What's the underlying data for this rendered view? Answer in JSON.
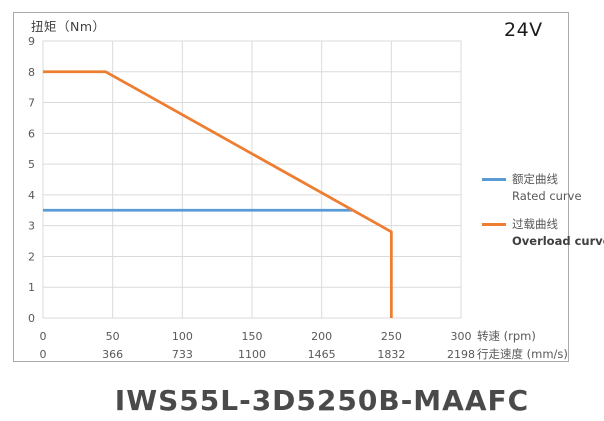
{
  "page": {
    "voltage_badge": "24V",
    "model_title": "IWS55L-3D5250B-MAAFC"
  },
  "chart_data": {
    "type": "line",
    "title": "IWS55L-3D5250B-MAAFC",
    "annotations": [
      "24V"
    ],
    "grid": true,
    "legend_position": "right",
    "y_axis": {
      "label": "扭矩（Nm）",
      "min": 0,
      "max": 9,
      "ticks": [
        0,
        1,
        2,
        3,
        4,
        5,
        6,
        7,
        8,
        9
      ]
    },
    "x_axis": {
      "label": "转速 (rpm)",
      "min": 0,
      "max": 300,
      "ticks": [
        0,
        50,
        100,
        150,
        200,
        250,
        300
      ]
    },
    "x_axis_secondary": {
      "label": "行走速度 (mm/s)",
      "tick_labels": [
        "0",
        "366",
        "733",
        "1100",
        "1465",
        "1832",
        "2198"
      ]
    },
    "series": [
      {
        "name_zh": "额定曲线",
        "name_en": "Rated curve",
        "color": "#5B9BD5",
        "points": [
          [
            0,
            3.5
          ],
          [
            222,
            3.5
          ]
        ]
      },
      {
        "name_zh": "过载曲线",
        "name_en": "Overload curve",
        "color": "#ED7D31",
        "points": [
          [
            0,
            8
          ],
          [
            45,
            8
          ],
          [
            250,
            2.8
          ],
          [
            250,
            0
          ]
        ]
      }
    ],
    "colors": {
      "gridline": "#DBDBDB",
      "axis_text": "#595959",
      "chart_border": "#ABABAB"
    }
  }
}
